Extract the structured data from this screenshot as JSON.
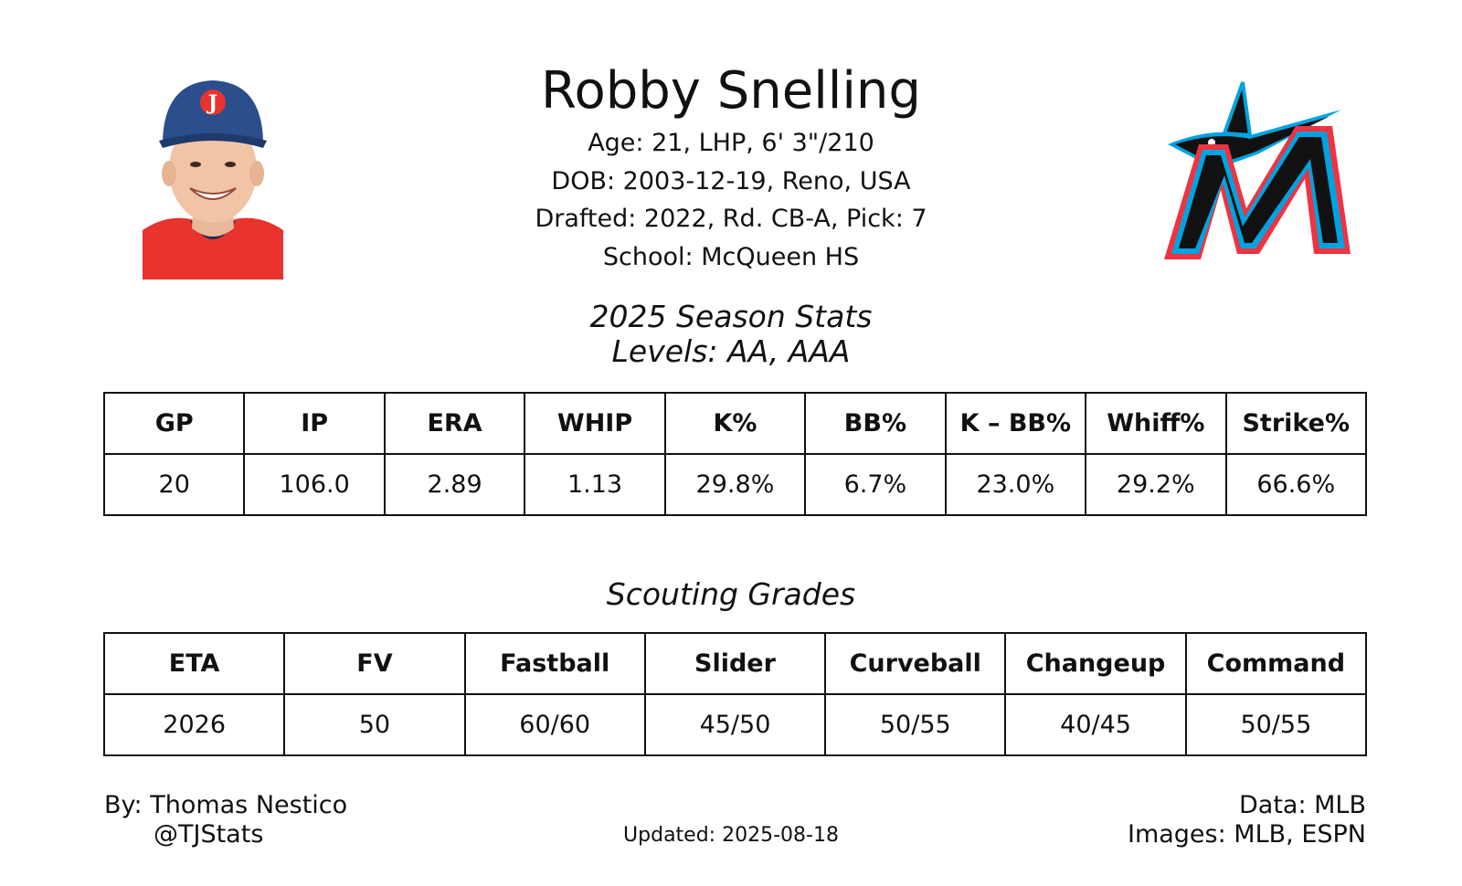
{
  "player": {
    "name": "Robby Snelling",
    "info_lines": [
      "Age: 21, LHP, 6' 3\"/210",
      "DOB: 2003-12-19, Reno, USA",
      "Drafted: 2022, Rd. CB-A, Pick: 7",
      "School: McQueen HS"
    ],
    "photo_icon": "player-headshot",
    "logo_icon": "marlins-logo"
  },
  "season": {
    "title": "2025 Season Stats",
    "levels": "Levels: AA, AAA",
    "headers": [
      "GP",
      "IP",
      "ERA",
      "WHIP",
      "K%",
      "BB%",
      "K – BB%",
      "Whiff%",
      "Strike%"
    ],
    "values": [
      "20",
      "106.0",
      "2.89",
      "1.13",
      "29.8%",
      "6.7%",
      "23.0%",
      "29.2%",
      "66.6%"
    ]
  },
  "scouting": {
    "title": "Scouting Grades",
    "headers": [
      "ETA",
      "FV",
      "Fastball",
      "Slider",
      "Curveball",
      "Changeup",
      "Command"
    ],
    "values": [
      "2026",
      "50",
      "60/60",
      "45/50",
      "50/55",
      "40/45",
      "50/55"
    ]
  },
  "footer": {
    "author": "By: Thomas Nestico",
    "handle": "@TJStats",
    "updated": "Updated: 2025-08-18",
    "data_source": "Data: MLB",
    "images_source": "Images: MLB, ESPN"
  },
  "colors": {
    "cap_blue": "#2b4e8c",
    "jersey_red": "#e8332f",
    "marlins_black": "#000000",
    "marlins_blue": "#00a3e0",
    "marlins_red": "#ef3340"
  }
}
